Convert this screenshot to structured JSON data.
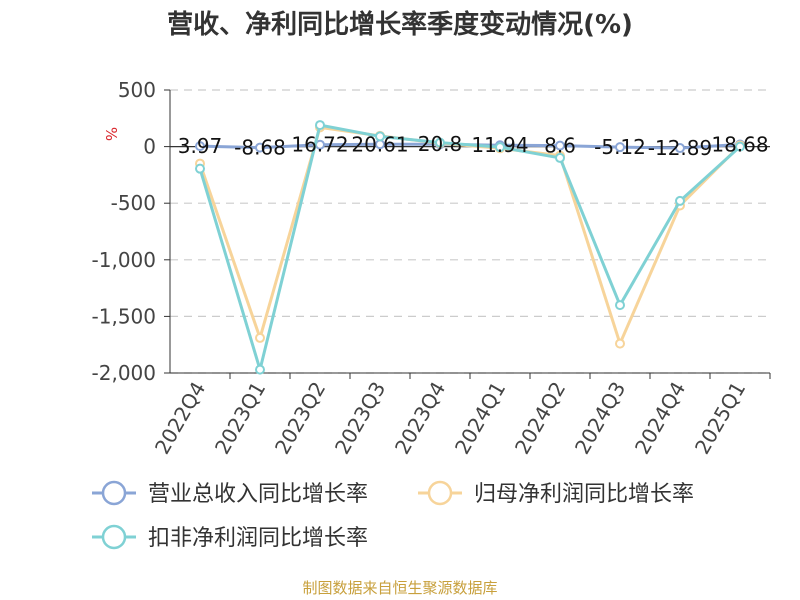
{
  "chart_data": {
    "type": "line",
    "title": "营收、净利同比增长率季度变动情况(%)",
    "ylabel": "%",
    "ylim": [
      -2000,
      500
    ],
    "yticks": [
      500,
      0,
      -500,
      -1000,
      -1500,
      -2000
    ],
    "ytick_labels": [
      "500",
      "0",
      "-500",
      "-1,000",
      "-1,500",
      "-2,000"
    ],
    "grid": true,
    "legend_position": "bottom-left",
    "categories": [
      "2022Q4",
      "2023Q1",
      "2023Q2",
      "2023Q3",
      "2023Q4",
      "2024Q1",
      "2024Q2",
      "2024Q3",
      "2024Q4",
      "2025Q1"
    ],
    "series": [
      {
        "name": "营业总收入同比增长率",
        "color": "#8aa5d6",
        "values": [
          3.97,
          -8.68,
          16.72,
          20.61,
          20.8,
          11.94,
          8.6,
          -5.12,
          -12.89,
          18.68
        ],
        "data_labels": [
          "3.97",
          "-8.68",
          "16.72",
          "20.61",
          "20.8",
          "11.94",
          "8.6",
          "-5.12",
          "-12.89",
          "18.68"
        ]
      },
      {
        "name": "归母净利润同比增长率",
        "color": "#f7d49a",
        "values": [
          -150,
          -1690,
          170,
          95,
          30,
          -15,
          -80,
          -1740,
          -520,
          10
        ],
        "data_labels": []
      },
      {
        "name": "扣非净利润同比增长率",
        "color": "#7fd1d4",
        "values": [
          -195,
          -1970,
          190,
          90,
          35,
          -5,
          -100,
          -1400,
          -480,
          0
        ],
        "data_labels": []
      }
    ]
  },
  "source_note": "制图数据来自恒生聚源数据库"
}
